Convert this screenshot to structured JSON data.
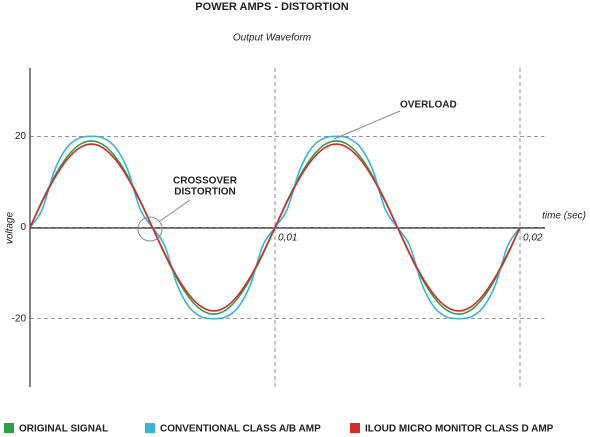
{
  "chart_data": {
    "type": "line",
    "title": "POWER AMPS - DISTORTION",
    "subtitle": "Output Waveform",
    "x_label": "time (sec)",
    "y_label": "voltage",
    "x": [
      0,
      0.0005,
      0.001,
      0.0015,
      0.002,
      0.0025,
      0.003,
      0.0035,
      0.004,
      0.0045,
      0.005,
      0.0055,
      0.006,
      0.0065,
      0.007,
      0.0075,
      0.008,
      0.0085,
      0.009,
      0.0095,
      0.01,
      0.0105,
      0.011,
      0.0115,
      0.012,
      0.0125,
      0.013,
      0.0135,
      0.014,
      0.0145,
      0.015,
      0.0155,
      0.016,
      0.0165,
      0.017,
      0.0175,
      0.018,
      0.0185,
      0.019,
      0.0195,
      0.02
    ],
    "series": [
      {
        "name": "ORIGINAL SIGNAL",
        "color": "#2e9e4a",
        "values": [
          0,
          5.9,
          11.2,
          15.4,
          18.1,
          19,
          18.1,
          15.4,
          11.2,
          5.9,
          0,
          -5.9,
          -11.2,
          -15.4,
          -18.1,
          -19,
          -18.1,
          -15.4,
          -11.2,
          -5.9,
          0,
          5.9,
          11.2,
          15.4,
          18.1,
          19,
          18.1,
          15.4,
          11.2,
          5.9,
          0,
          -5.9,
          -11.2,
          -15.4,
          -18.1,
          -19,
          -18.1,
          -15.4,
          -11.2,
          -5.9,
          0
        ]
      },
      {
        "name": "CONVENTIONAL CLASS A/B AMP",
        "color": "#3cb3d9",
        "values": [
          0,
          4,
          12.5,
          17.5,
          19.6,
          20,
          19.6,
          17.5,
          12.5,
          4,
          0,
          -4,
          -12.5,
          -17.5,
          -19.6,
          -20,
          -19.6,
          -17.5,
          -12.5,
          -4,
          0,
          4,
          12.5,
          17.5,
          19.6,
          20,
          19.6,
          17.5,
          12.5,
          4,
          0,
          -4,
          -12.5,
          -17.5,
          -19.6,
          -20,
          -19.6,
          -17.5,
          -12.5,
          -4,
          0
        ]
      },
      {
        "name": "ILOUD MICRO MONITOR CLASS D AMP",
        "color": "#cf2f2c",
        "values": [
          0,
          5.7,
          10.8,
          14.8,
          17.4,
          18.3,
          17.4,
          14.8,
          10.8,
          5.7,
          0,
          -5.7,
          -10.8,
          -14.8,
          -17.4,
          -18.3,
          -17.4,
          -14.8,
          -10.8,
          -5.7,
          0,
          5.7,
          10.8,
          14.8,
          17.4,
          18.3,
          17.4,
          14.8,
          10.8,
          5.7,
          0,
          -5.7,
          -10.8,
          -14.8,
          -17.4,
          -18.3,
          -17.4,
          -14.8,
          -10.8,
          -5.7,
          0
        ]
      }
    ],
    "xlim": [
      0,
      0.021
    ],
    "ylim": [
      -35,
      35
    ],
    "xticks": [
      {
        "value": 0.01,
        "label": "0,01"
      },
      {
        "value": 0.02,
        "label": "0,02"
      }
    ],
    "yticks": [
      -20,
      0,
      20
    ],
    "grid": true,
    "legend": "bottom",
    "annotations": [
      {
        "lines": [
          "OVERLOAD"
        ]
      },
      {
        "lines": [
          "CROSSOVER",
          "DISTORTION"
        ]
      }
    ]
  }
}
